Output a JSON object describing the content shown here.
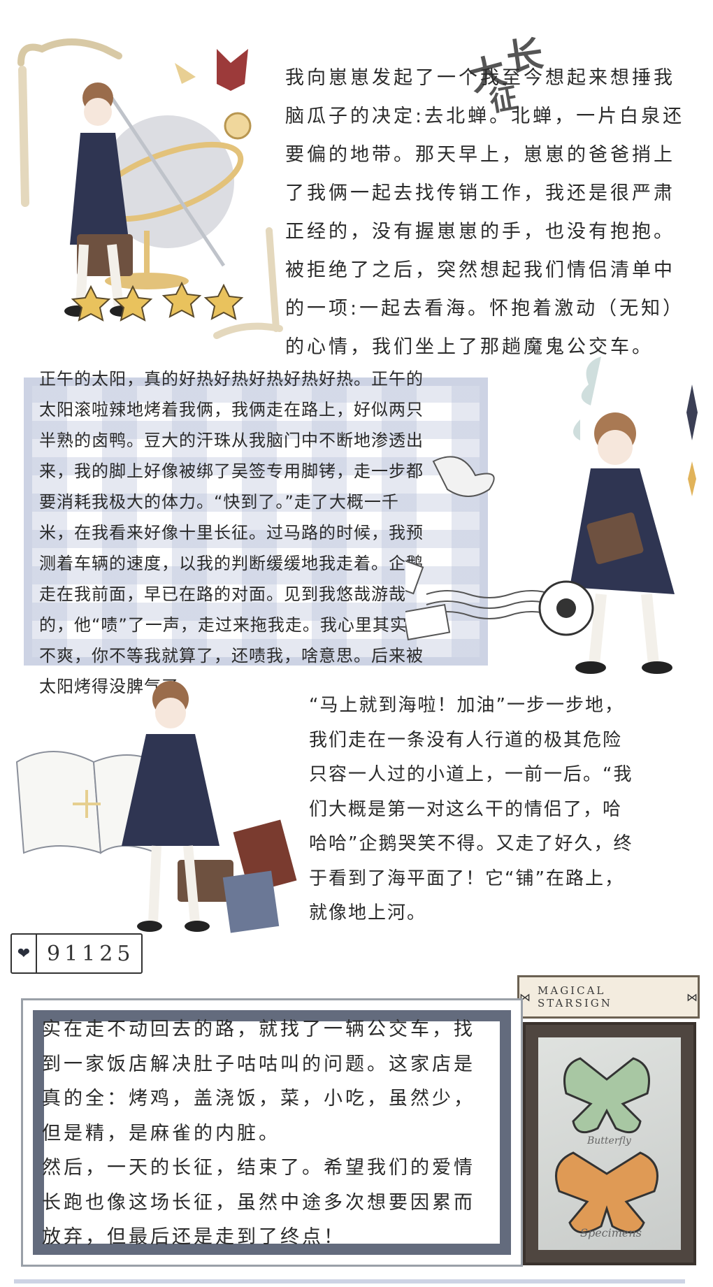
{
  "title": {
    "chars": [
      "大",
      "长",
      "征"
    ]
  },
  "section1": {
    "lines": [
      "我向崽崽发起了一个我至今想起来想捶我",
      "脑瓜子的决定:去北蝉。北蝉，一片白泉还",
      "要偏的地带。那天早上，崽崽的爸爸捎上",
      "了我俩一起去找传销工作，我还是很严肃",
      "正经的，没有握崽崽的手，也没有抱抱。",
      "被拒绝了之后，突然想起我们情侣清单中",
      "的一项:一起去看海。怀抱着激动（无知）",
      "的心情，我们坐上了那趟魔鬼公交车。"
    ]
  },
  "section2": {
    "lines": [
      "正午的太阳，真的好热好热好热好热好热。正午的",
      "太阳滚啦辣地烤着我俩，我俩走在路上，好似两只",
      "半熟的卤鸭。豆大的汗珠从我脑门中不断地渗透出",
      "来，我的脚上好像被绑了吴签专用脚铐，走一步都",
      "要消耗我极大的体力。“快到了。”走了大概一千",
      "米，在我看来好像十里长征。过马路的时候，我预",
      "测着车辆的速度，以我的判断缓缓地我走着。企鹅",
      "走在我前面，早已在路的对面。见到我悠哉游哉",
      "的，他“啧”了一声，走过来拖我走。我心里其实很",
      "不爽，你不等我就算了，还啧我，啥意思。后来被",
      "太阳烤得没脾气了。"
    ]
  },
  "section3": {
    "lines": [
      "“马上就到海啦！加油”一步一步地，",
      "我们走在一条没有人行道的极其危险",
      "只容一人过的小道上，一前一后。“我",
      "们大概是第一对这么干的情侣了，哈",
      "哈哈”企鹅哭笑不得。又走了好久，终",
      "于看到了海平面了！它“铺”在路上，",
      "就像地上河。"
    ]
  },
  "section4": {
    "lines": [
      "实在走不动回去的路，就找了一辆公交车，找",
      "到一家饭店解决肚子咕咕叫的问题。这家店是",
      "真的全：烤鸡，盖浇饭，菜，小吃，虽然少，",
      "但是精，是麻雀的内脏。",
      "然后，一天的长征，结束了。希望我们的爱情",
      "长跑也像这场长征，虽然中途多次想要因累而",
      "放弃，但最后还是走到了终点！"
    ]
  },
  "counter": {
    "value": "91125"
  },
  "badge": {
    "text": "MAGICAL STARSIGN"
  },
  "specimen": {
    "top_label": "Butterfly",
    "bottom_label": "Specimens"
  },
  "colors": {
    "accent": "#636b7d",
    "stripe": "#cdd3e4",
    "wood": "#4f4640"
  }
}
